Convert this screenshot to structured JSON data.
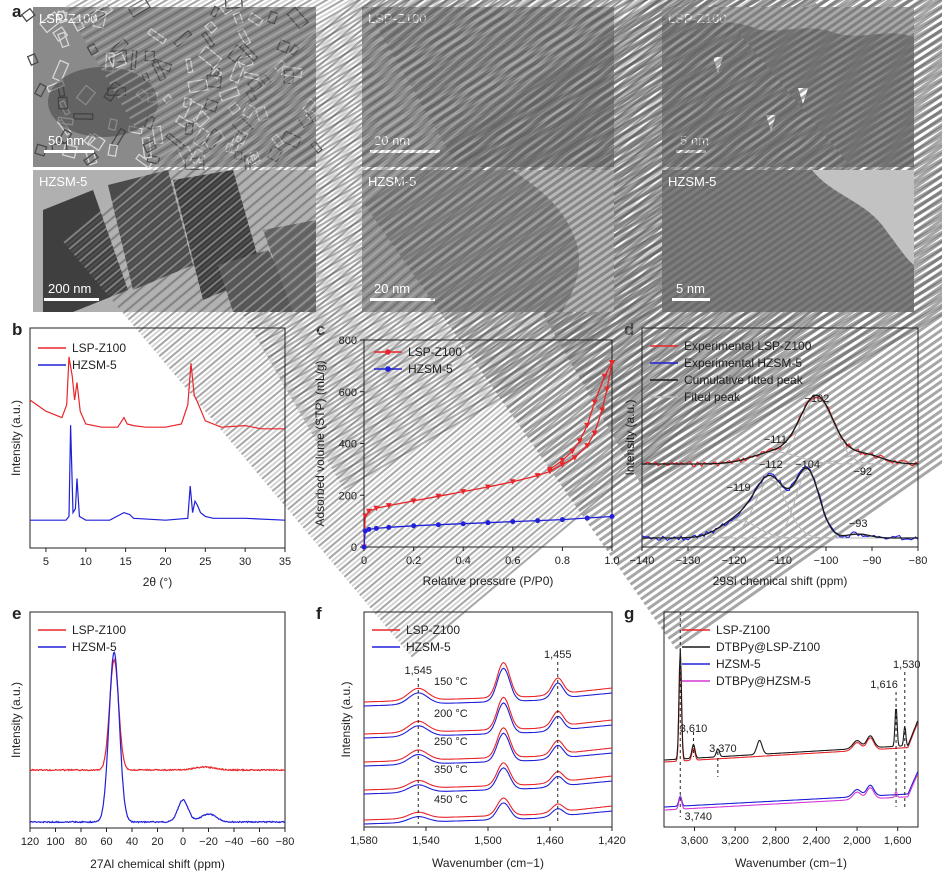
{
  "panels": {
    "a": {
      "label": "a",
      "images": [
        {
          "sample": "LSP-Z100",
          "scale": "50 nm"
        },
        {
          "sample": "LSP-Z100",
          "scale": "20 nm"
        },
        {
          "sample": "LSP-Z100",
          "scale": "5 nm"
        },
        {
          "sample": "HZSM-5",
          "scale": "200 nm"
        },
        {
          "sample": "HZSM-5",
          "scale": "20 nm"
        },
        {
          "sample": "HZSM-5",
          "scale": "5 nm"
        }
      ]
    },
    "b": {
      "label": "b"
    },
    "c": {
      "label": "c"
    },
    "d": {
      "label": "d"
    },
    "e": {
      "label": "e"
    },
    "f": {
      "label": "f"
    },
    "g": {
      "label": "g"
    }
  },
  "colors": {
    "red": "#e8262b",
    "blue": "#2020d8",
    "black": "#1a1a1a",
    "grey": "#b8b8b8",
    "magenta": "#d43ad4"
  },
  "chart_data": [
    {
      "id": "b",
      "type": "line",
      "xlabel": "2θ (°)",
      "ylabel": "Intensity (a.u.)",
      "xlim": [
        3,
        35
      ],
      "xticks": [
        "5",
        "10",
        "15",
        "20",
        "25",
        "30",
        "35"
      ],
      "legend": [
        "LSP-Z100",
        "HZSM-5"
      ],
      "legend_position": "top-left",
      "series": [
        {
          "name": "LSP-Z100",
          "x": [
            3,
            5,
            7,
            7.6,
            7.9,
            8.3,
            8.6,
            8.9,
            9.3,
            10,
            12,
            14,
            14.8,
            15.2,
            16,
            17.5,
            20,
            22,
            22.8,
            23.2,
            23.6,
            24,
            24.5,
            25,
            27,
            30,
            32,
            35
          ],
          "y": [
            55,
            48,
            44,
            52,
            82,
            70,
            55,
            66,
            48,
            40,
            38,
            38,
            44,
            40,
            39,
            38,
            38,
            40,
            52,
            78,
            58,
            54,
            48,
            42,
            38,
            39,
            37,
            37
          ]
        },
        {
          "name": "HZSM-5",
          "x": [
            3,
            7.5,
            7.9,
            8.1,
            8.4,
            8.7,
            8.9,
            9.2,
            10,
            13,
            13.9,
            14.8,
            15.5,
            16,
            20,
            22.8,
            23.1,
            23.4,
            23.7,
            24,
            24.4,
            25,
            26,
            30,
            35
          ],
          "y": [
            12,
            12,
            14,
            62,
            16,
            18,
            34,
            14,
            12,
            12,
            14,
            16,
            15,
            13,
            12,
            13,
            30,
            16,
            22,
            20,
            16,
            14,
            13,
            13,
            12
          ]
        }
      ]
    },
    {
      "id": "c",
      "type": "line",
      "xlabel": "Relative pressure (P/P0)",
      "ylabel": "Adsorbed volume (STP) (mL/g)",
      "xlim": [
        0,
        1
      ],
      "ylim": [
        0,
        800
      ],
      "xticks": [
        "0",
        "0.2",
        "0.4",
        "0.6",
        "0.8",
        "1.0"
      ],
      "yticks": [
        "0",
        "200",
        "400",
        "600",
        "800"
      ],
      "legend": [
        "LSP-Z100",
        "HZSM-5"
      ],
      "legend_position": "top-left",
      "series": [
        {
          "name": "LSP-Z100",
          "x": [
            0,
            0.005,
            0.02,
            0.05,
            0.1,
            0.2,
            0.3,
            0.4,
            0.5,
            0.6,
            0.7,
            0.75,
            0.8,
            0.85,
            0.9,
            0.93,
            0.96,
            0.98,
            1.0
          ],
          "y": [
            0,
            120,
            138,
            150,
            160,
            178,
            196,
            214,
            232,
            252,
            276,
            292,
            318,
            345,
            392,
            440,
            530,
            610,
            712
          ]
        },
        {
          "name": "LSP-Z100 (desorption)",
          "x": [
            1.0,
            0.97,
            0.93,
            0.9,
            0.87,
            0.84,
            0.8,
            0.75
          ],
          "y": [
            712,
            660,
            560,
            470,
            410,
            370,
            335,
            300
          ]
        },
        {
          "name": "HZSM-5",
          "x": [
            0,
            0.005,
            0.02,
            0.05,
            0.1,
            0.2,
            0.3,
            0.4,
            0.5,
            0.6,
            0.7,
            0.8,
            0.9,
            1.0
          ],
          "y": [
            0,
            62,
            68,
            72,
            76,
            82,
            86,
            90,
            94,
            98,
            102,
            106,
            112,
            118
          ]
        }
      ]
    },
    {
      "id": "d",
      "type": "line",
      "xlabel": "29Si chemical shift (ppm)",
      "ylabel": "Intensity (a.u.)",
      "xlim": [
        -140,
        -80
      ],
      "xticks": [
        "−140",
        "−130",
        "−120",
        "−110",
        "−100",
        "−90",
        "−80"
      ],
      "legend": [
        "Experimental LSP-Z100",
        "Experimental HZSM-5",
        "Cumulative fitted peak",
        "Fited peak"
      ],
      "legend_position": "top",
      "annotations": [
        "−102",
        "−111",
        "−92",
        "−112",
        "−104",
        "−119",
        "−93"
      ],
      "peaks_lsp": [
        {
          "center": -111,
          "height": 12,
          "width": 5
        },
        {
          "center": -102,
          "height": 66,
          "width": 3.6
        },
        {
          "center": -92,
          "height": 10,
          "width": 4
        }
      ],
      "peaks_hzsm": [
        {
          "center": -119,
          "height": 18,
          "width": 4
        },
        {
          "center": -112,
          "height": 58,
          "width": 3.4
        },
        {
          "center": -104,
          "height": 66,
          "width": 2.6
        },
        {
          "center": -93,
          "height": 4,
          "width": 2.5
        }
      ]
    },
    {
      "id": "e",
      "type": "line",
      "xlabel": "27Al chemical shift (ppm)",
      "ylabel": "Intensity (a.u.)",
      "xlim": [
        120,
        -80
      ],
      "xticks": [
        "120",
        "100",
        "80",
        "60",
        "40",
        "20",
        "0",
        "−20",
        "−40",
        "−60",
        "−80"
      ],
      "legend": [
        "LSP-Z100",
        "HZSM-5"
      ],
      "legend_position": "top-left",
      "peaks_lsp": [
        {
          "center": 54,
          "height": 110,
          "width": 3.5
        },
        {
          "center": -17,
          "height": 3,
          "width": 8
        }
      ],
      "peaks_hzsm": [
        {
          "center": 54,
          "height": 170,
          "width": 4
        },
        {
          "center": 0,
          "height": 22,
          "width": 4
        },
        {
          "center": -20,
          "height": 8,
          "width": 6
        }
      ]
    },
    {
      "id": "f",
      "type": "line",
      "xlabel": "Wavenumber (cm−1)",
      "ylabel": "Intensity (a.u.)",
      "xlim": [
        1580,
        1420
      ],
      "xticks": [
        "1,580",
        "1,540",
        "1,500",
        "1,460",
        "1,420"
      ],
      "legend": [
        "LSP-Z100",
        "HZSM-5"
      ],
      "legend_position": "top-left",
      "annotations": [
        "1,545",
        "1,455"
      ],
      "temperatures": [
        "150 °C",
        "200 °C",
        "250 °C",
        "350 °C",
        "450 °C"
      ]
    },
    {
      "id": "g",
      "type": "line",
      "xlabel": "Wavenumber (cm−1)",
      "xlim": [
        3900,
        1400
      ],
      "xticks": [
        "3,600",
        "3,200",
        "2,800",
        "2,400",
        "2,000",
        "1,600"
      ],
      "legend": [
        "LSP-Z100",
        "DTBPy@LSP-Z100",
        "HZSM-5",
        "DTBPy@HZSM-5"
      ],
      "legend_position": "top-left",
      "annotations": [
        "3,610",
        "3,370",
        "3,740",
        "1,616",
        "1,530"
      ]
    }
  ]
}
